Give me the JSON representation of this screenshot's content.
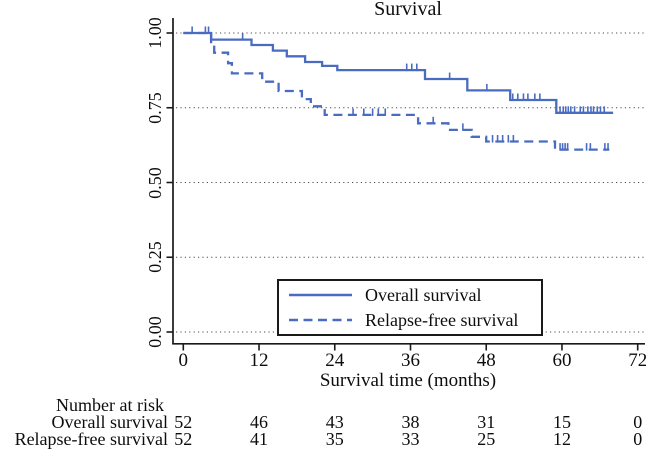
{
  "chart_data": {
    "type": "line",
    "subtype": "kaplan-meier-step",
    "title": "Survival",
    "xlabel": "Survival time (months)",
    "x_ticks": [
      0,
      12,
      24,
      36,
      48,
      60,
      72
    ],
    "y_ticks": [
      {
        "v": 0.0,
        "label": "0.00"
      },
      {
        "v": 0.25,
        "label": "0.25"
      },
      {
        "v": 0.5,
        "label": "0.50"
      },
      {
        "v": 0.75,
        "label": "0.75"
      },
      {
        "v": 1.0,
        "label": "1.00"
      }
    ],
    "xlim": [
      0,
      72
    ],
    "ylim": [
      0,
      1.0
    ],
    "grid": "horizontal-dotted",
    "legend_position": "inside-bottom-center",
    "series": [
      {
        "name": "Overall survival",
        "line_style": "solid",
        "steps": [
          [
            0,
            1.0
          ],
          [
            4.4,
            0.978
          ],
          [
            10.8,
            0.96
          ],
          [
            14.2,
            0.941
          ],
          [
            16.4,
            0.922
          ],
          [
            19.3,
            0.903
          ],
          [
            22.0,
            0.89
          ],
          [
            24.4,
            0.876
          ],
          [
            38.3,
            0.846
          ],
          [
            45.0,
            0.808
          ],
          [
            51.8,
            0.776
          ],
          [
            59.1,
            0.733
          ]
        ],
        "end_month": 68.1,
        "censor_ticks": [
          [
            1.4,
            1.0
          ],
          [
            3.5,
            1.0
          ],
          [
            4.0,
            1.0
          ],
          [
            9.4,
            0.978
          ],
          [
            35.4,
            0.876
          ],
          [
            36.2,
            0.876
          ],
          [
            37.0,
            0.876
          ],
          [
            42.2,
            0.846
          ],
          [
            48.1,
            0.808
          ],
          [
            52.2,
            0.776
          ],
          [
            53.0,
            0.776
          ],
          [
            53.9,
            0.776
          ],
          [
            54.6,
            0.776
          ],
          [
            55.7,
            0.776
          ],
          [
            56.5,
            0.776
          ],
          [
            59.7,
            0.733
          ],
          [
            60.2,
            0.733
          ],
          [
            60.6,
            0.733
          ],
          [
            61.0,
            0.733
          ],
          [
            61.4,
            0.733
          ],
          [
            62.0,
            0.733
          ],
          [
            62.9,
            0.733
          ],
          [
            63.4,
            0.733
          ],
          [
            64.1,
            0.733
          ],
          [
            64.6,
            0.733
          ],
          [
            65.0,
            0.733
          ],
          [
            65.6,
            0.733
          ],
          [
            66.1,
            0.733
          ],
          [
            66.7,
            0.733
          ]
        ]
      },
      {
        "name": "Relapse-free survival",
        "line_style": "dashed",
        "steps": [
          [
            0,
            1.0
          ],
          [
            4.4,
            0.962
          ],
          [
            4.9,
            0.934
          ],
          [
            7.1,
            0.899
          ],
          [
            7.7,
            0.865
          ],
          [
            12.5,
            0.837
          ],
          [
            15.1,
            0.806
          ],
          [
            18.8,
            0.779
          ],
          [
            20.2,
            0.755
          ],
          [
            22.4,
            0.726
          ],
          [
            37.2,
            0.698
          ],
          [
            42.0,
            0.676
          ],
          [
            45.7,
            0.653
          ],
          [
            48.0,
            0.637
          ],
          [
            58.9,
            0.61
          ]
        ],
        "end_month": 67.5,
        "censor_ticks": [
          [
            26.9,
            0.726
          ],
          [
            28.6,
            0.726
          ],
          [
            30.0,
            0.726
          ],
          [
            30.9,
            0.726
          ],
          [
            32.0,
            0.726
          ],
          [
            39.6,
            0.698
          ],
          [
            44.3,
            0.676
          ],
          [
            49.0,
            0.637
          ],
          [
            49.8,
            0.637
          ],
          [
            50.6,
            0.637
          ],
          [
            51.5,
            0.637
          ],
          [
            52.3,
            0.637
          ],
          [
            59.7,
            0.61
          ],
          [
            60.1,
            0.61
          ],
          [
            60.5,
            0.61
          ],
          [
            60.9,
            0.61
          ],
          [
            63.9,
            0.61
          ],
          [
            64.5,
            0.61
          ],
          [
            66.8,
            0.61
          ],
          [
            67.3,
            0.61
          ]
        ]
      }
    ],
    "risk_table": {
      "title": "Number at risk",
      "rows": [
        {
          "label": "Overall survival",
          "values": [
            52,
            46,
            43,
            38,
            31,
            15,
            0
          ]
        },
        {
          "label": "Relapse-free survival",
          "values": [
            52,
            41,
            35,
            33,
            25,
            12,
            0
          ]
        }
      ]
    },
    "colors": {
      "curve": "#4a6cc0",
      "axis": "#1a1a1a",
      "grid": "#4d4d4d",
      "text": "#0d0d0d",
      "legend_border": "#1a1a1a"
    }
  }
}
